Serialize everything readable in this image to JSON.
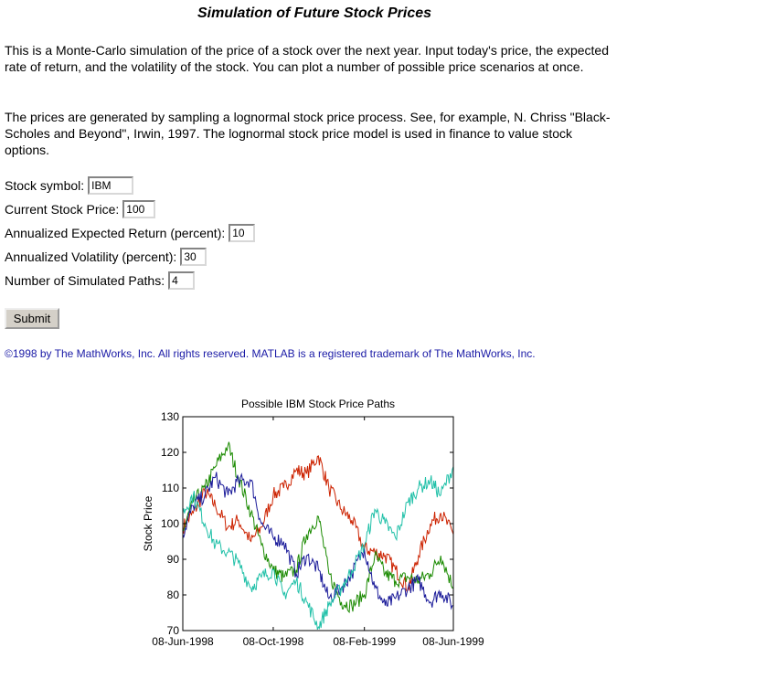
{
  "page": {
    "title": "Simulation of Future Stock Prices",
    "intro": "This is a Monte-Carlo simulation of the price of a stock over the next year. Input today's price, the expected rate of return, and the volatility of the stock. You can plot a number of possible price scenarios at once.",
    "method": "The prices are generated by sampling a lognormal stock price process. See, for example, N. Chriss \"Black-Scholes and Beyond\", Irwin, 1997. The lognormal stock price model is used in finance to value stock options."
  },
  "form": {
    "symbol_label": "Stock symbol:",
    "symbol_value": "IBM",
    "price_label": "Current Stock Price:",
    "price_value": "100",
    "return_label": "Annualized Expected Return (percent):",
    "return_value": "10",
    "vol_label": "Annualized Volatility (percent):",
    "vol_value": "30",
    "paths_label": "Number of Simulated Paths:",
    "paths_value": "4",
    "submit_label": "Submit"
  },
  "footer": {
    "copyright": "©1998 by The MathWorks, Inc. All rights reserved. MATLAB is a registered trademark of The MathWorks, Inc."
  },
  "chart_data": {
    "type": "line",
    "title": "Possible IBM Stock Price Paths",
    "ylabel": "Stock Price",
    "xlabel": "",
    "ylim": [
      70,
      130
    ],
    "yticks": [
      70,
      80,
      90,
      100,
      110,
      120,
      130
    ],
    "xticks": [
      "08-Jun-1998",
      "08-Oct-1998",
      "08-Feb-1999",
      "08-Jun-1999"
    ],
    "xlim": [
      "08-Jun-1998",
      "08-Jun-1999"
    ],
    "grid": false,
    "series": [
      {
        "color": "#cc2200",
        "anchors": [
          [
            "08-Jun-1998",
            99
          ],
          [
            "22-Jun-1998",
            103
          ],
          [
            "08-Jul-1998",
            109
          ],
          [
            "22-Jul-1998",
            105
          ],
          [
            "08-Aug-1998",
            99
          ],
          [
            "22-Aug-1998",
            101
          ],
          [
            "08-Sep-1998",
            95
          ],
          [
            "22-Sep-1998",
            99
          ],
          [
            "08-Oct-1998",
            108
          ],
          [
            "22-Oct-1998",
            110
          ],
          [
            "08-Nov-1998",
            115
          ],
          [
            "22-Nov-1998",
            114
          ],
          [
            "08-Dec-1998",
            119
          ],
          [
            "22-Dec-1998",
            110
          ],
          [
            "08-Jan-1999",
            104
          ],
          [
            "22-Jan-1999",
            101
          ],
          [
            "08-Feb-1999",
            93
          ],
          [
            "22-Feb-1999",
            92
          ],
          [
            "08-Mar-1999",
            91
          ],
          [
            "22-Mar-1999",
            87
          ],
          [
            "08-Apr-1999",
            82
          ],
          [
            "22-Apr-1999",
            91
          ],
          [
            "08-May-1999",
            100
          ],
          [
            "22-May-1999",
            103
          ],
          [
            "08-Jun-1999",
            97
          ]
        ]
      },
      {
        "color": "#1a8a00",
        "anchors": [
          [
            "08-Jun-1998",
            98
          ],
          [
            "22-Jun-1998",
            106
          ],
          [
            "08-Jul-1998",
            110
          ],
          [
            "22-Jul-1998",
            116
          ],
          [
            "08-Aug-1998",
            122
          ],
          [
            "22-Aug-1998",
            113
          ],
          [
            "08-Sep-1998",
            103
          ],
          [
            "22-Sep-1998",
            94
          ],
          [
            "08-Oct-1998",
            87
          ],
          [
            "22-Oct-1998",
            85
          ],
          [
            "08-Nov-1998",
            87
          ],
          [
            "22-Nov-1998",
            97
          ],
          [
            "08-Dec-1998",
            102
          ],
          [
            "22-Dec-1998",
            86
          ],
          [
            "08-Jan-1999",
            78
          ],
          [
            "22-Jan-1999",
            77
          ],
          [
            "08-Feb-1999",
            80
          ],
          [
            "22-Feb-1999",
            91
          ],
          [
            "08-Mar-1999",
            86
          ],
          [
            "22-Mar-1999",
            84
          ],
          [
            "08-Apr-1999",
            85
          ],
          [
            "22-Apr-1999",
            84
          ],
          [
            "08-May-1999",
            86
          ],
          [
            "22-May-1999",
            91
          ],
          [
            "08-Jun-1999",
            82
          ]
        ]
      },
      {
        "color": "#1a1a99",
        "anchors": [
          [
            "08-Jun-1998",
            97
          ],
          [
            "22-Jun-1998",
            105
          ],
          [
            "08-Jul-1998",
            108
          ],
          [
            "22-Jul-1998",
            113
          ],
          [
            "08-Aug-1998",
            108
          ],
          [
            "22-Aug-1998",
            112
          ],
          [
            "08-Sep-1998",
            112
          ],
          [
            "22-Sep-1998",
            100
          ],
          [
            "08-Oct-1998",
            96
          ],
          [
            "22-Oct-1998",
            95
          ],
          [
            "08-Nov-1998",
            86
          ],
          [
            "22-Nov-1998",
            91
          ],
          [
            "08-Dec-1998",
            87
          ],
          [
            "22-Dec-1998",
            79
          ],
          [
            "08-Jan-1999",
            82
          ],
          [
            "22-Jan-1999",
            86
          ],
          [
            "08-Feb-1999",
            93
          ],
          [
            "22-Feb-1999",
            82
          ],
          [
            "08-Mar-1999",
            77
          ],
          [
            "22-Mar-1999",
            79
          ],
          [
            "08-Apr-1999",
            82
          ],
          [
            "22-Apr-1999",
            84
          ],
          [
            "08-May-1999",
            78
          ],
          [
            "22-May-1999",
            81
          ],
          [
            "08-Jun-1999",
            77
          ]
        ]
      },
      {
        "color": "#20c0a8",
        "anchors": [
          [
            "08-Jun-1998",
            103
          ],
          [
            "22-Jun-1998",
            108
          ],
          [
            "08-Jul-1998",
            100
          ],
          [
            "22-Jul-1998",
            94
          ],
          [
            "08-Aug-1998",
            92
          ],
          [
            "22-Aug-1998",
            89
          ],
          [
            "08-Sep-1998",
            82
          ],
          [
            "22-Sep-1998",
            85
          ],
          [
            "08-Oct-1998",
            87
          ],
          [
            "22-Oct-1998",
            80
          ],
          [
            "08-Nov-1998",
            84
          ],
          [
            "22-Nov-1998",
            78
          ],
          [
            "08-Dec-1998",
            71
          ],
          [
            "22-Dec-1998",
            77
          ],
          [
            "08-Jan-1999",
            82
          ],
          [
            "22-Jan-1999",
            87
          ],
          [
            "08-Feb-1999",
            94
          ],
          [
            "22-Feb-1999",
            104
          ],
          [
            "08-Mar-1999",
            100
          ],
          [
            "22-Mar-1999",
            96
          ],
          [
            "08-Apr-1999",
            106
          ],
          [
            "22-Apr-1999",
            110
          ],
          [
            "08-May-1999",
            112
          ],
          [
            "22-May-1999",
            108
          ],
          [
            "08-Jun-1999",
            116
          ]
        ]
      }
    ]
  }
}
